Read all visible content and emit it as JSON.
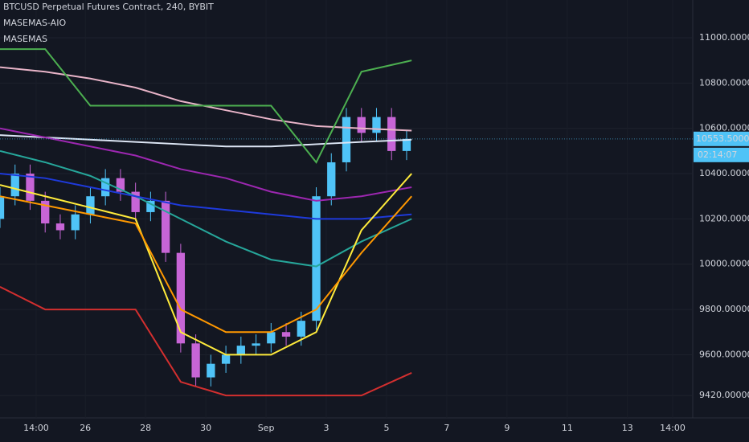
{
  "chart_data": {
    "type": "candlestick",
    "title": "BTCUSD Perpetual Futures Contract, 240, BYBIT",
    "indicators": [
      "MASEMAS-AIO",
      "MASEMAS"
    ],
    "xlim": [
      0,
      138
    ],
    "xticks": [
      {
        "value": 7.2,
        "label": "14:00"
      },
      {
        "value": 17,
        "label": "26"
      },
      {
        "value": 29,
        "label": "28"
      },
      {
        "value": 41,
        "label": "30"
      },
      {
        "value": 53,
        "label": "Sep"
      },
      {
        "value": 65,
        "label": "3"
      },
      {
        "value": 77,
        "label": "5"
      },
      {
        "value": 89,
        "label": "7"
      },
      {
        "value": 101,
        "label": "9"
      },
      {
        "value": 113,
        "label": "11"
      },
      {
        "value": 125,
        "label": "13"
      },
      {
        "value": 134,
        "label": "14:00"
      }
    ],
    "ylim": [
      9321,
      11167
    ],
    "yticks": [
      {
        "value": 11000,
        "label": "11000.00000000"
      },
      {
        "value": 10800,
        "label": "10800.00000000"
      },
      {
        "value": 10600,
        "label": "10600.00000000"
      },
      {
        "value": 10400,
        "label": "10400.00000000"
      },
      {
        "value": 10200,
        "label": "10200.00000000"
      },
      {
        "value": 10000,
        "label": "10000.00000000"
      },
      {
        "value": 9800,
        "label": "9800.00000000"
      },
      {
        "value": 9600,
        "label": "9600.00000000"
      },
      {
        "value": 9420,
        "label": "9420.00000000"
      }
    ],
    "grid": true,
    "last_price": {
      "value": 10553.5,
      "label": "10553.50000000"
    },
    "countdown": "02:14:07",
    "up_color": "#4fc3f7",
    "down_color": "#c765d6",
    "candles": {
      "x": [
        0,
        3,
        6,
        9,
        12,
        15,
        18,
        21,
        24,
        27,
        30,
        33,
        36,
        39,
        42,
        45,
        48,
        51,
        54,
        57,
        60,
        63,
        66,
        69,
        72,
        75,
        78,
        81
      ],
      "open": [
        10200,
        10300,
        10400,
        10280,
        10180,
        10150,
        10220,
        10300,
        10380,
        10320,
        10230,
        10280,
        10050,
        9650,
        9500,
        9560,
        9600,
        9640,
        9650,
        9700,
        9680,
        9750,
        10300,
        10450,
        10650,
        10580,
        10650,
        10500
      ],
      "high": [
        10340,
        10440,
        10440,
        10320,
        10220,
        10260,
        10340,
        10420,
        10420,
        10360,
        10320,
        10320,
        10090,
        9690,
        9600,
        9640,
        9680,
        9690,
        9740,
        9740,
        9790,
        10340,
        10490,
        10690,
        10690,
        10690,
        10690,
        10593.5
      ],
      "low": [
        10160,
        10260,
        10240,
        10140,
        10110,
        10110,
        10180,
        10260,
        10280,
        10190,
        10190,
        10010,
        9610,
        9460,
        9460,
        9520,
        9560,
        9600,
        9610,
        9640,
        9640,
        9710,
        10260,
        10410,
        10540,
        10540,
        10460,
        10460
      ],
      "close": [
        10300,
        10400,
        10280,
        10180,
        10150,
        10220,
        10300,
        10380,
        10320,
        10230,
        10280,
        10050,
        9650,
        9500,
        9560,
        9600,
        9640,
        9650,
        9700,
        9680,
        9750,
        10300,
        10450,
        10650,
        10580,
        10650,
        10500,
        10553.5
      ]
    },
    "line_x": [
      0,
      9,
      18,
      27,
      36,
      45,
      54,
      63,
      72,
      82
    ],
    "series": [
      {
        "color": "#e8b4c8",
        "values": [
          10870,
          10850,
          10820,
          10780,
          10720,
          10680,
          10640,
          10610,
          10600,
          10590
        ]
      },
      {
        "color": "#dde6f5",
        "values": [
          10570,
          10560,
          10550,
          10540,
          10530,
          10520,
          10520,
          10530,
          10540,
          10550
        ]
      },
      {
        "color": "#9c27b0",
        "values": [
          10600,
          10560,
          10520,
          10480,
          10420,
          10380,
          10320,
          10280,
          10300,
          10340
        ]
      },
      {
        "color": "#26a69a",
        "values": [
          10500,
          10450,
          10390,
          10300,
          10200,
          10100,
          10020,
          9990,
          10100,
          10200
        ]
      },
      {
        "color": "#1e3adb",
        "values": [
          10400,
          10380,
          10340,
          10300,
          10260,
          10240,
          10220,
          10200,
          10200,
          10220
        ]
      },
      {
        "color": "#ffeb3b",
        "values": [
          10350,
          10300,
          10250,
          10200,
          9700,
          9600,
          9600,
          9700,
          10150,
          10400
        ]
      },
      {
        "color": "#ff9800",
        "values": [
          10300,
          10260,
          10220,
          10180,
          9800,
          9700,
          9700,
          9800,
          10050,
          10300
        ]
      },
      {
        "color": "#4caf50",
        "values": [
          10950,
          10950,
          10700,
          10700,
          10700,
          10700,
          10700,
          10450,
          10850,
          10900
        ]
      },
      {
        "color": "#d32f2f",
        "values": [
          9900,
          9800,
          9800,
          9800,
          9480,
          9420,
          9420,
          9420,
          9420,
          9520
        ]
      }
    ]
  }
}
